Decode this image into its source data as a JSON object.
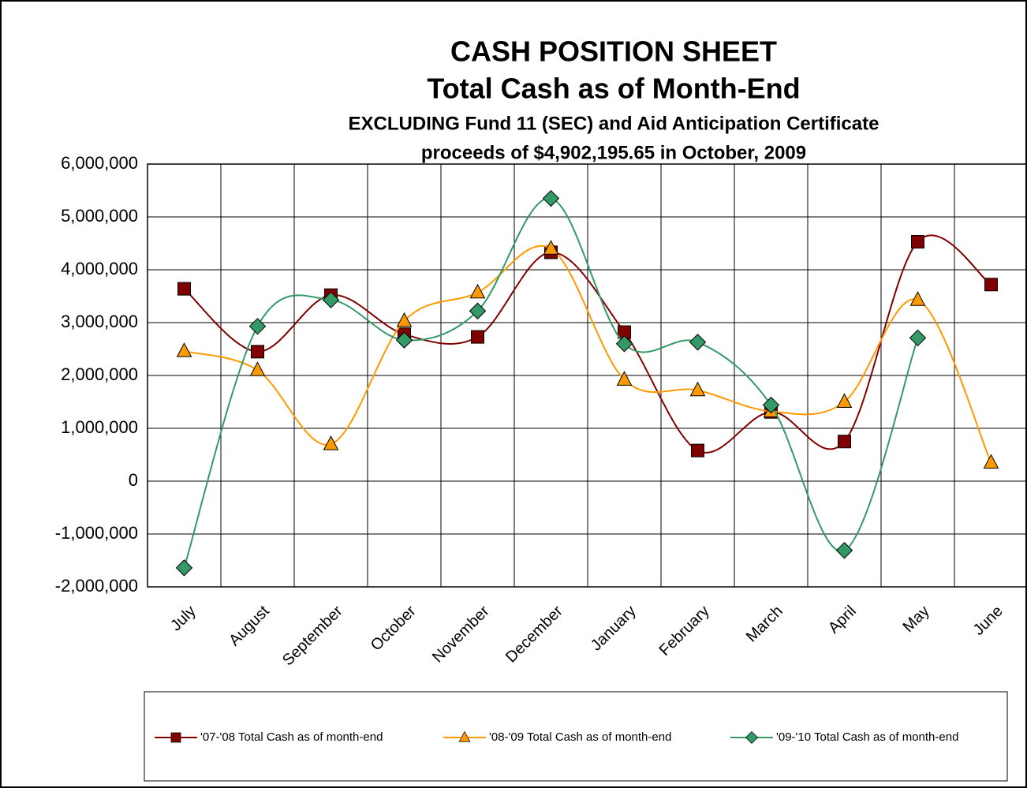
{
  "chart_data": {
    "type": "line",
    "title": "CASH POSITION SHEET",
    "subtitle": "Total Cash as of Month-End",
    "notes": [
      "EXCLUDING Fund 11 (SEC) and Aid Anticipation Certificate",
      "proceeds of $4,902,195.65 in October, 2009"
    ],
    "categories": [
      "July",
      "August",
      "September",
      "October",
      "November",
      "December",
      "January",
      "February",
      "March",
      "April",
      "May",
      "June"
    ],
    "series": [
      {
        "name": "'07-'08 Total Cash as of month-end",
        "color": "#800000",
        "marker": "square",
        "values": [
          3640000,
          2450000,
          3520000,
          2780000,
          2730000,
          4330000,
          2820000,
          580000,
          1310000,
          750000,
          4530000,
          3720000
        ]
      },
      {
        "name": "'08-'09 Total Cash as of month-end",
        "color": "#ff9900",
        "marker": "triangle",
        "values": [
          2460000,
          2100000,
          700000,
          3030000,
          3570000,
          4400000,
          1920000,
          1720000,
          1320000,
          1500000,
          3430000,
          350000
        ]
      },
      {
        "name": "'09-'10 Total Cash as of month-end",
        "color": "#339966",
        "marker": "diamond",
        "values": [
          -1640000,
          2930000,
          3430000,
          2670000,
          3220000,
          5350000,
          2600000,
          2630000,
          1440000,
          -1310000,
          2710000,
          null
        ]
      }
    ],
    "ylim": [
      -2000000,
      6000000
    ],
    "yticks": [
      {
        "value": -2000000,
        "label": "-2,000,000"
      },
      {
        "value": -1000000,
        "label": "-1,000,000"
      },
      0,
      {
        "value": 1000000,
        "label": "1,000,000"
      },
      {
        "value": 2000000,
        "label": "2,000,000"
      },
      {
        "value": 3000000,
        "label": "3,000,000"
      },
      {
        "value": 4000000,
        "label": "4,000,000"
      },
      {
        "value": 5000000,
        "label": "5,000,000"
      },
      {
        "value": 6000000,
        "label": "6,000,000"
      }
    ],
    "grid": true,
    "legend": "bottom"
  }
}
